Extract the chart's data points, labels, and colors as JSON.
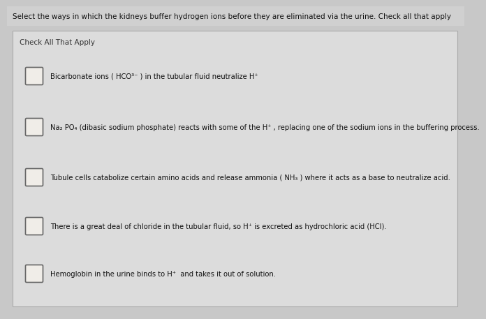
{
  "title": "Select the ways in which the kidneys buffer hydrogen ions before they are eliminated via the urine. Check all that apply",
  "subtitle": "Check All That Apply",
  "options": [
    "Bicarbonate ions ( HCO³⁻ ) in the tubular fluid neutralize H⁺",
    "Na₂ PO₄ (dibasic sodium phosphate) reacts with some of the H⁺ , replacing one of the sodium ions in the buffering process.",
    "Tubule cells catabolize certain amino acids and release ammonia ( NH₃ ) where it acts as a base to neutralize acid.",
    "There is a great deal of chloride in the tubular fluid, so H⁺ is excreted as hydrochloric acid (HCl).",
    "Hemoglobin in the urine binds to H⁺  and takes it out of solution."
  ],
  "bg_outer": "#c8c8c8",
  "bg_title_strip": "#d0d0d0",
  "bg_inner": "#dcdcdc",
  "title_color": "#111111",
  "subtitle_color": "#333333",
  "option_color": "#111111",
  "title_fontsize": 7.5,
  "subtitle_fontsize": 7.5,
  "option_fontsize": 7.2,
  "checkbox_color": "#f0ede8",
  "checkbox_edge": "#666666"
}
